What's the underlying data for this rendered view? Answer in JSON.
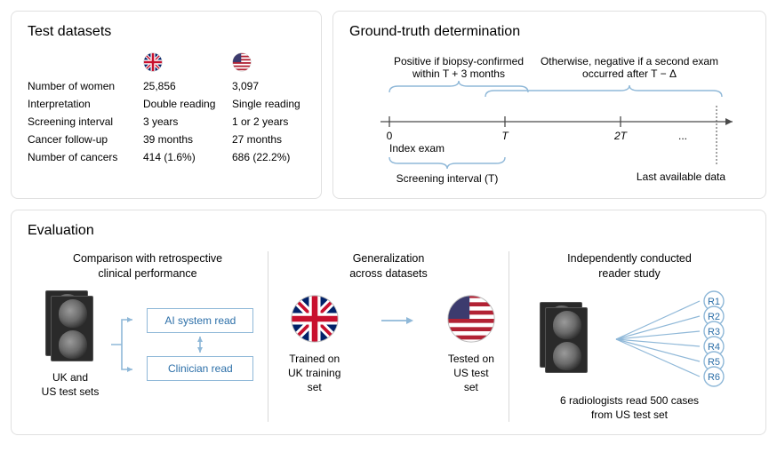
{
  "colors": {
    "border": "#e0e0e0",
    "divider": "#d8d8d8",
    "accent_blue": "#8fb8d8",
    "text_blue": "#2c6fa8",
    "axis": "#4a4a4a",
    "uk_red": "#c8102e",
    "uk_blue": "#012169",
    "us_red": "#b22234",
    "us_blue": "#3c3b6e"
  },
  "datasets": {
    "title": "Test datasets",
    "flags": [
      "uk",
      "us"
    ],
    "rows": [
      {
        "label": "Number of women",
        "uk": "25,856",
        "us": "3,097"
      },
      {
        "label": "Interpretation",
        "uk": "Double reading",
        "us": "Single reading"
      },
      {
        "label": "Screening interval",
        "uk": "3 years",
        "us": "1 or 2 years"
      },
      {
        "label": "Cancer follow-up",
        "uk": "39 months",
        "us": "27 months"
      },
      {
        "label": "Number of cancers",
        "uk": "414 (1.6%)",
        "us": "686 (22.2%)"
      }
    ]
  },
  "ground_truth": {
    "title": "Ground-truth determination",
    "label_positive": "Positive if biopsy-confirmed\nwithin T + 3 months",
    "label_negative": "Otherwise, negative if a second exam\noccurred after T − Δ",
    "axis": {
      "ticks": [
        "0",
        "T",
        "2T",
        "..."
      ],
      "index_exam": "Index exam",
      "screening_interval": "Screening interval (T)",
      "last_data": "Last available data"
    }
  },
  "evaluation": {
    "title": "Evaluation",
    "col1": {
      "subtitle": "Comparison with retrospective\nclinical performance",
      "box_ai": "AI system read",
      "box_clinician": "Clinician read",
      "caption": "UK and\nUS test sets"
    },
    "col2": {
      "subtitle": "Generalization\nacross datasets",
      "trained": "Trained on\nUK training set",
      "tested": "Tested on\nUS test set"
    },
    "col3": {
      "subtitle": "Independently conducted\nreader study",
      "readers": [
        "R1",
        "R2",
        "R3",
        "R4",
        "R5",
        "R6"
      ],
      "caption": "6 radiologists read 500 cases\nfrom US test set"
    }
  }
}
